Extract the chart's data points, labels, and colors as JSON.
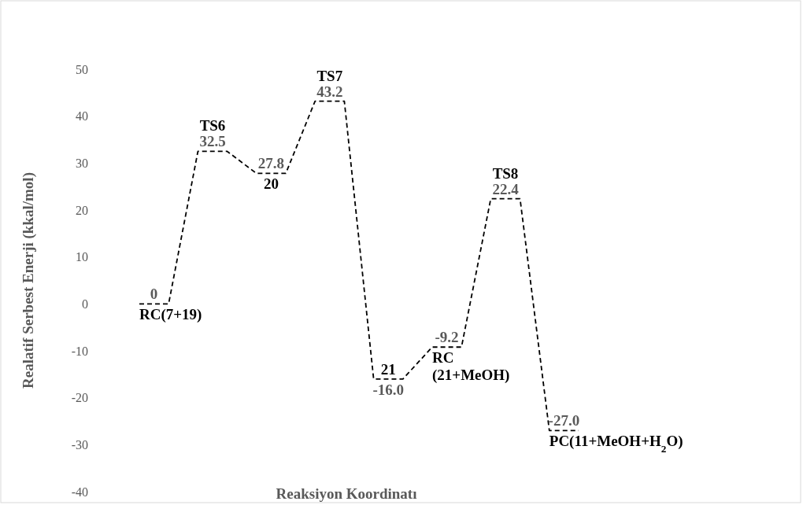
{
  "chart_data": {
    "type": "line",
    "xlabel": "Reaksiyon Koordinatı",
    "ylabel": "Realatif Serbest Enerji (kkal/mol)",
    "categories": [
      null,
      null,
      null,
      null,
      null,
      null,
      null,
      null,
      null,
      null,
      null,
      null,
      null,
      null,
      null,
      null
    ],
    "series": [
      {
        "color": "#000000",
        "values": [
          0,
          0,
          32.5,
          32.5,
          27.8,
          27.8,
          43.2,
          43.2,
          -16.0,
          -16.0,
          -9.2,
          -9.2,
          22.4,
          22.4,
          -27.0,
          -27.0
        ],
        "value_labels": [
          "0",
          null,
          "32.5",
          null,
          "27.8",
          null,
          "43.2",
          null,
          "-16.0",
          null,
          "-9.2",
          null,
          "22.4",
          null,
          "-27.0",
          null
        ]
      }
    ],
    "ylim": [
      -40,
      50
    ],
    "yticks": [
      -40,
      -30,
      -20,
      -10,
      0,
      10,
      20,
      30,
      40,
      50
    ],
    "annotations": [
      "RC(7+19)",
      "TS6",
      "20",
      "TS7",
      "21",
      "RC\n(21+MeOH)",
      "TS8",
      "PC(11+MeOH+H$_{2}$O)"
    ],
    "tick_labels": "y",
    "grid": false,
    "marker": "none",
    "line_style": "dashed"
  }
}
